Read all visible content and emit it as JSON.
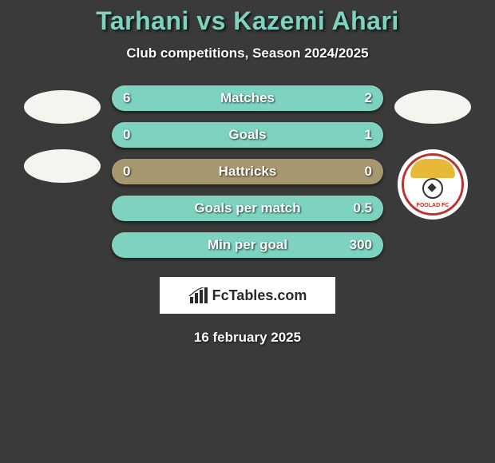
{
  "title": "Tarhani vs Kazemi Ahari",
  "subtitle": "Club competitions, Season 2024/2025",
  "date": "16 february 2025",
  "footer_brand": "FcTables.com",
  "colors": {
    "background": "#3a3a3a",
    "accent": "#7dd3c0",
    "bar_bg": "#a89870",
    "text": "#ffffff",
    "badge_red": "#b8342c",
    "badge_gold": "#e8b838"
  },
  "badge_text": "FOOLAD FC",
  "stats": [
    {
      "label": "Matches",
      "left_val": "6",
      "right_val": "2",
      "left_pct": 75,
      "right_pct": 25
    },
    {
      "label": "Goals",
      "left_val": "0",
      "right_val": "1",
      "left_pct": 0,
      "right_pct": 100
    },
    {
      "label": "Hattricks",
      "left_val": "0",
      "right_val": "0",
      "left_pct": 0,
      "right_pct": 0
    },
    {
      "label": "Goals per match",
      "left_val": "",
      "right_val": "0.5",
      "left_pct": 0,
      "right_pct": 100
    },
    {
      "label": "Min per goal",
      "left_val": "",
      "right_val": "300",
      "left_pct": 0,
      "right_pct": 100
    }
  ]
}
